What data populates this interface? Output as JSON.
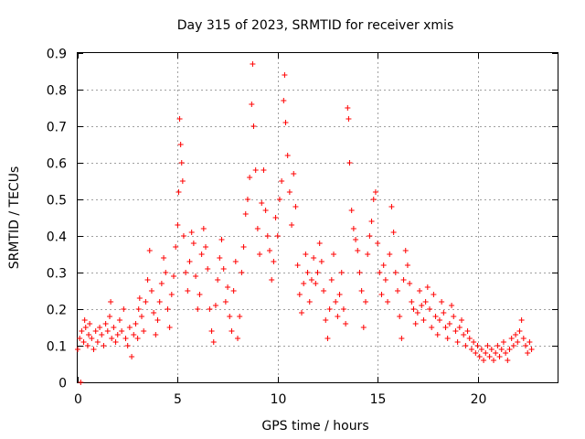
{
  "chart_data": {
    "type": "scatter",
    "title": "Day 315 of 2023, SRMTID for receiver xmis",
    "xlabel": "GPS time / hours",
    "ylabel": "SRMTID / TECUs",
    "xlim": [
      0,
      24
    ],
    "ylim": [
      0,
      0.9
    ],
    "grid": true,
    "marker": "+",
    "x_ticks": [
      0,
      5,
      10,
      15,
      20
    ],
    "x_tick_labels": [
      "0",
      "5",
      "10",
      "15",
      "20"
    ],
    "y_ticks": [
      0,
      0.1,
      0.2,
      0.3,
      0.4,
      0.5,
      0.6,
      0.7,
      0.8,
      0.9
    ],
    "y_tick_labels": [
      "0",
      "0.1",
      "0.2",
      "0.3",
      "0.4",
      "0.5",
      "0.6",
      "0.7",
      "0.8",
      "0.9"
    ],
    "series": [
      {
        "name": "SRMTID",
        "color": "#ff0000",
        "points": [
          [
            0.0,
            0.09
          ],
          [
            0.1,
            0.12
          ],
          [
            0.15,
            0.0
          ],
          [
            0.2,
            0.14
          ],
          [
            0.3,
            0.11
          ],
          [
            0.35,
            0.17
          ],
          [
            0.4,
            0.15
          ],
          [
            0.5,
            0.1
          ],
          [
            0.55,
            0.13
          ],
          [
            0.6,
            0.16
          ],
          [
            0.7,
            0.12
          ],
          [
            0.8,
            0.09
          ],
          [
            0.9,
            0.14
          ],
          [
            1.0,
            0.11
          ],
          [
            1.1,
            0.15
          ],
          [
            1.2,
            0.13
          ],
          [
            1.3,
            0.1
          ],
          [
            1.4,
            0.16
          ],
          [
            1.5,
            0.14
          ],
          [
            1.6,
            0.18
          ],
          [
            1.65,
            0.22
          ],
          [
            1.7,
            0.12
          ],
          [
            1.8,
            0.15
          ],
          [
            1.9,
            0.11
          ],
          [
            2.0,
            0.13
          ],
          [
            2.1,
            0.17
          ],
          [
            2.2,
            0.14
          ],
          [
            2.3,
            0.2
          ],
          [
            2.4,
            0.12
          ],
          [
            2.5,
            0.1
          ],
          [
            2.6,
            0.15
          ],
          [
            2.7,
            0.07
          ],
          [
            2.8,
            0.13
          ],
          [
            2.9,
            0.16
          ],
          [
            3.0,
            0.12
          ],
          [
            3.05,
            0.2
          ],
          [
            3.1,
            0.23
          ],
          [
            3.2,
            0.18
          ],
          [
            3.3,
            0.14
          ],
          [
            3.4,
            0.22
          ],
          [
            3.5,
            0.28
          ],
          [
            3.6,
            0.36
          ],
          [
            3.7,
            0.25
          ],
          [
            3.8,
            0.19
          ],
          [
            3.9,
            0.13
          ],
          [
            4.0,
            0.17
          ],
          [
            4.1,
            0.22
          ],
          [
            4.2,
            0.27
          ],
          [
            4.3,
            0.34
          ],
          [
            4.4,
            0.3
          ],
          [
            4.5,
            0.2
          ],
          [
            4.6,
            0.15
          ],
          [
            4.7,
            0.24
          ],
          [
            4.8,
            0.29
          ],
          [
            4.9,
            0.37
          ],
          [
            5.0,
            0.43
          ],
          [
            5.05,
            0.52
          ],
          [
            5.1,
            0.72
          ],
          [
            5.15,
            0.65
          ],
          [
            5.2,
            0.6
          ],
          [
            5.25,
            0.55
          ],
          [
            5.3,
            0.4
          ],
          [
            5.4,
            0.3
          ],
          [
            5.5,
            0.25
          ],
          [
            5.6,
            0.33
          ],
          [
            5.7,
            0.41
          ],
          [
            5.8,
            0.38
          ],
          [
            5.9,
            0.29
          ],
          [
            6.0,
            0.2
          ],
          [
            6.1,
            0.24
          ],
          [
            6.2,
            0.35
          ],
          [
            6.3,
            0.42
          ],
          [
            6.4,
            0.37
          ],
          [
            6.5,
            0.31
          ],
          [
            6.6,
            0.2
          ],
          [
            6.7,
            0.14
          ],
          [
            6.8,
            0.11
          ],
          [
            6.9,
            0.21
          ],
          [
            7.0,
            0.28
          ],
          [
            7.1,
            0.34
          ],
          [
            7.2,
            0.39
          ],
          [
            7.3,
            0.31
          ],
          [
            7.4,
            0.22
          ],
          [
            7.5,
            0.26
          ],
          [
            7.6,
            0.18
          ],
          [
            7.7,
            0.14
          ],
          [
            7.8,
            0.25
          ],
          [
            7.9,
            0.33
          ],
          [
            8.0,
            0.12
          ],
          [
            8.1,
            0.18
          ],
          [
            8.2,
            0.3
          ],
          [
            8.3,
            0.37
          ],
          [
            8.4,
            0.46
          ],
          [
            8.5,
            0.5
          ],
          [
            8.6,
            0.56
          ],
          [
            8.7,
            0.76
          ],
          [
            8.75,
            0.87
          ],
          [
            8.8,
            0.7
          ],
          [
            8.9,
            0.58
          ],
          [
            9.0,
            0.42
          ],
          [
            9.1,
            0.35
          ],
          [
            9.2,
            0.49
          ],
          [
            9.3,
            0.58
          ],
          [
            9.4,
            0.47
          ],
          [
            9.5,
            0.4
          ],
          [
            9.6,
            0.36
          ],
          [
            9.7,
            0.28
          ],
          [
            9.8,
            0.33
          ],
          [
            9.9,
            0.45
          ],
          [
            10.0,
            0.4
          ],
          [
            10.1,
            0.5
          ],
          [
            10.2,
            0.55
          ],
          [
            10.3,
            0.77
          ],
          [
            10.35,
            0.84
          ],
          [
            10.4,
            0.71
          ],
          [
            10.5,
            0.62
          ],
          [
            10.6,
            0.52
          ],
          [
            10.7,
            0.43
          ],
          [
            10.8,
            0.57
          ],
          [
            10.9,
            0.48
          ],
          [
            11.0,
            0.32
          ],
          [
            11.1,
            0.24
          ],
          [
            11.2,
            0.19
          ],
          [
            11.3,
            0.27
          ],
          [
            11.4,
            0.35
          ],
          [
            11.5,
            0.3
          ],
          [
            11.6,
            0.22
          ],
          [
            11.7,
            0.28
          ],
          [
            11.8,
            0.34
          ],
          [
            11.9,
            0.27
          ],
          [
            12.0,
            0.3
          ],
          [
            12.1,
            0.38
          ],
          [
            12.2,
            0.33
          ],
          [
            12.3,
            0.25
          ],
          [
            12.4,
            0.17
          ],
          [
            12.5,
            0.12
          ],
          [
            12.6,
            0.2
          ],
          [
            12.7,
            0.28
          ],
          [
            12.8,
            0.35
          ],
          [
            12.9,
            0.22
          ],
          [
            13.0,
            0.18
          ],
          [
            13.1,
            0.24
          ],
          [
            13.2,
            0.3
          ],
          [
            13.3,
            0.2
          ],
          [
            13.4,
            0.16
          ],
          [
            13.5,
            0.75
          ],
          [
            13.55,
            0.72
          ],
          [
            13.6,
            0.6
          ],
          [
            13.7,
            0.47
          ],
          [
            13.8,
            0.42
          ],
          [
            13.9,
            0.39
          ],
          [
            14.0,
            0.36
          ],
          [
            14.1,
            0.3
          ],
          [
            14.2,
            0.25
          ],
          [
            14.3,
            0.15
          ],
          [
            14.4,
            0.22
          ],
          [
            14.5,
            0.35
          ],
          [
            14.6,
            0.4
          ],
          [
            14.7,
            0.44
          ],
          [
            14.8,
            0.5
          ],
          [
            14.9,
            0.52
          ],
          [
            15.0,
            0.38
          ],
          [
            15.1,
            0.3
          ],
          [
            15.2,
            0.24
          ],
          [
            15.3,
            0.32
          ],
          [
            15.4,
            0.28
          ],
          [
            15.5,
            0.22
          ],
          [
            15.6,
            0.35
          ],
          [
            15.7,
            0.48
          ],
          [
            15.8,
            0.41
          ],
          [
            15.9,
            0.3
          ],
          [
            16.0,
            0.25
          ],
          [
            16.1,
            0.18
          ],
          [
            16.2,
            0.12
          ],
          [
            16.3,
            0.28
          ],
          [
            16.4,
            0.36
          ],
          [
            16.5,
            0.32
          ],
          [
            16.6,
            0.27
          ],
          [
            16.7,
            0.22
          ],
          [
            16.8,
            0.2
          ],
          [
            16.9,
            0.16
          ],
          [
            17.0,
            0.19
          ],
          [
            17.1,
            0.25
          ],
          [
            17.2,
            0.21
          ],
          [
            17.3,
            0.17
          ],
          [
            17.4,
            0.22
          ],
          [
            17.5,
            0.26
          ],
          [
            17.6,
            0.2
          ],
          [
            17.7,
            0.15
          ],
          [
            17.8,
            0.24
          ],
          [
            17.9,
            0.18
          ],
          [
            18.0,
            0.13
          ],
          [
            18.1,
            0.17
          ],
          [
            18.2,
            0.22
          ],
          [
            18.3,
            0.19
          ],
          [
            18.4,
            0.15
          ],
          [
            18.5,
            0.12
          ],
          [
            18.6,
            0.16
          ],
          [
            18.7,
            0.21
          ],
          [
            18.8,
            0.18
          ],
          [
            18.9,
            0.14
          ],
          [
            19.0,
            0.11
          ],
          [
            19.1,
            0.15
          ],
          [
            19.2,
            0.17
          ],
          [
            19.3,
            0.13
          ],
          [
            19.4,
            0.1
          ],
          [
            19.5,
            0.14
          ],
          [
            19.6,
            0.12
          ],
          [
            19.7,
            0.09
          ],
          [
            19.8,
            0.11
          ],
          [
            19.9,
            0.08
          ],
          [
            20.0,
            0.1
          ],
          [
            20.1,
            0.07
          ],
          [
            20.2,
            0.09
          ],
          [
            20.3,
            0.06
          ],
          [
            20.4,
            0.08
          ],
          [
            20.5,
            0.1
          ],
          [
            20.6,
            0.07
          ],
          [
            20.7,
            0.09
          ],
          [
            20.8,
            0.06
          ],
          [
            20.9,
            0.08
          ],
          [
            21.0,
            0.1
          ],
          [
            21.1,
            0.07
          ],
          [
            21.2,
            0.09
          ],
          [
            21.3,
            0.11
          ],
          [
            21.4,
            0.08
          ],
          [
            21.5,
            0.06
          ],
          [
            21.6,
            0.09
          ],
          [
            21.7,
            0.12
          ],
          [
            21.8,
            0.1
          ],
          [
            21.9,
            0.13
          ],
          [
            22.0,
            0.11
          ],
          [
            22.1,
            0.14
          ],
          [
            22.2,
            0.17
          ],
          [
            22.3,
            0.12
          ],
          [
            22.4,
            0.1
          ],
          [
            22.5,
            0.08
          ],
          [
            22.6,
            0.11
          ],
          [
            22.7,
            0.09
          ]
        ]
      }
    ]
  }
}
